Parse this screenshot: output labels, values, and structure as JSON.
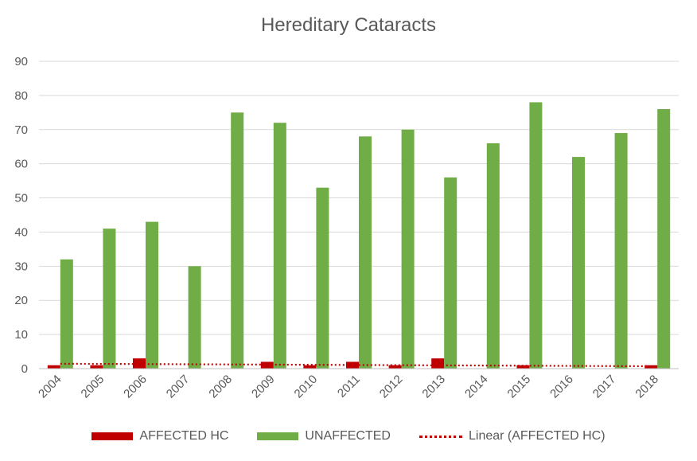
{
  "chart_data": {
    "type": "bar",
    "title": "Hereditary Cataracts",
    "categories": [
      "2004",
      "2005",
      "2006",
      "2007",
      "2008",
      "2009",
      "2010",
      "2011",
      "2012",
      "2013",
      "2014",
      "2015",
      "2016",
      "2017",
      "2018"
    ],
    "series": [
      {
        "name": "AFFECTED HC",
        "color": "#c00000",
        "values": [
          1,
          1,
          3,
          0,
          0,
          2,
          1,
          2,
          1,
          3,
          0,
          1,
          0,
          0,
          1
        ]
      },
      {
        "name": "UNAFFECTED",
        "color": "#70ad47",
        "values": [
          32,
          41,
          43,
          30,
          75,
          72,
          53,
          68,
          70,
          56,
          66,
          78,
          62,
          69,
          76
        ]
      }
    ],
    "trendline": {
      "name": "Linear (AFFECTED HC)",
      "color": "#c00000",
      "of_series": "AFFECTED HC",
      "style": "dotted"
    },
    "ylim": [
      0,
      90
    ],
    "yticks": [
      0,
      10,
      20,
      30,
      40,
      50,
      60,
      70,
      80,
      90
    ],
    "grid": true,
    "legend_position": "bottom"
  }
}
